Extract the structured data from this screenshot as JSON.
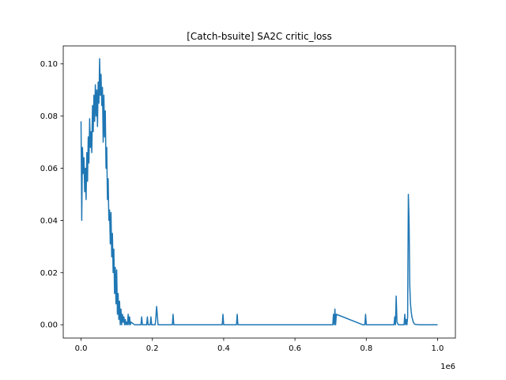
{
  "chart_data": {
    "type": "line",
    "title": "[Catch-bsuite] SA2C critic_loss",
    "xlabel": "",
    "ylabel": "",
    "x_offset_label": "1e6",
    "xlim": [
      -50000,
      1050000
    ],
    "ylim": [
      -0.0051,
      0.1069
    ],
    "x_ticks": [
      0,
      200000,
      400000,
      600000,
      800000,
      1000000
    ],
    "x_tick_labels": [
      "0.0",
      "0.2",
      "0.4",
      "0.6",
      "0.8",
      "1.0"
    ],
    "y_ticks": [
      0.0,
      0.02,
      0.04,
      0.06,
      0.08,
      0.1
    ],
    "y_tick_labels": [
      "0.00",
      "0.02",
      "0.04",
      "0.06",
      "0.08",
      "0.10"
    ],
    "grid": false,
    "legend": "none",
    "series_color": "#1f77b4",
    "series": [
      {
        "x": [
          0,
          2000,
          4000,
          6000,
          8000,
          10000,
          12000,
          14000,
          16000,
          18000,
          20000,
          22000,
          24000,
          26000,
          28000,
          30000,
          32000,
          34000,
          36000,
          38000,
          40000,
          42000,
          44000,
          46000,
          48000,
          50000,
          52000,
          54000,
          56000,
          58000,
          60000,
          62000,
          64000,
          66000,
          68000,
          70000,
          72000,
          74000,
          76000,
          78000,
          80000,
          82000,
          84000,
          86000,
          88000,
          90000,
          92000,
          94000,
          96000,
          98000,
          100000,
          102000,
          104000,
          106000,
          108000,
          110000,
          112000,
          114000,
          116000,
          118000,
          120000,
          122000,
          124000,
          126000,
          128000,
          130000,
          132000,
          134000,
          136000,
          138000,
          140000,
          150000,
          160000,
          168000,
          170000,
          172000,
          180000,
          184000,
          186000,
          188000,
          194000,
          196000,
          198000,
          206000,
          208000,
          210000,
          212000,
          216000,
          250000,
          256000,
          258000,
          260000,
          300000,
          390000,
          396000,
          398000,
          400000,
          430000,
          436000,
          438000,
          440000,
          500000,
          600000,
          700000,
          706000,
          708000,
          710000,
          712000,
          714000,
          716000,
          790000,
          796000,
          798000,
          800000,
          870000,
          876000,
          878000,
          880000,
          882000,
          884000,
          886000,
          890000,
          900000,
          904000,
          906000,
          908000,
          910000,
          912000,
          914000,
          916000,
          918000,
          920000,
          922000,
          924000,
          926000,
          928000,
          930000,
          932000,
          934000,
          936000,
          940000,
          950000,
          1000000
        ],
        "y": [
          0.078,
          0.04,
          0.068,
          0.058,
          0.064,
          0.051,
          0.06,
          0.048,
          0.066,
          0.055,
          0.072,
          0.062,
          0.079,
          0.068,
          0.074,
          0.066,
          0.084,
          0.074,
          0.088,
          0.078,
          0.092,
          0.08,
          0.09,
          0.076,
          0.093,
          0.085,
          0.102,
          0.088,
          0.096,
          0.084,
          0.091,
          0.07,
          0.088,
          0.072,
          0.082,
          0.06,
          0.068,
          0.048,
          0.056,
          0.04,
          0.044,
          0.031,
          0.043,
          0.026,
          0.035,
          0.02,
          0.029,
          0.012,
          0.022,
          0.008,
          0.021,
          0.004,
          0.012,
          0.002,
          0.009,
          0.0,
          0.006,
          0.0,
          0.004,
          0.001,
          0.003,
          0.0,
          0.002,
          0.0,
          0.001,
          0.0,
          0.004,
          0.0,
          0.003,
          0.0,
          0.001,
          0.0,
          0.0,
          0.0,
          0.003,
          0.0,
          0.0,
          0.0,
          0.003,
          0.0,
          0.0,
          0.003,
          0.0,
          0.0,
          0.0,
          0.003,
          0.007,
          0.0,
          0.0,
          0.0,
          0.004,
          0.0,
          0.0,
          0.0,
          0.0,
          0.004,
          0.0,
          0.0,
          0.0,
          0.004,
          0.0,
          0.0,
          0.0,
          0.0,
          0.0,
          0.004,
          0.0,
          0.006,
          0.0,
          0.004,
          0.0,
          0.0,
          0.004,
          0.0,
          0.0,
          0.0,
          0.0,
          0.003,
          0.0,
          0.011,
          0.001,
          0.0,
          0.0,
          0.0,
          0.0,
          0.004,
          0.0,
          0.002,
          0.0,
          0.003,
          0.05,
          0.04,
          0.015,
          0.008,
          0.005,
          0.003,
          0.002,
          0.001,
          0.0005,
          0.0002,
          0.0001,
          0.0,
          0.0
        ]
      }
    ]
  }
}
